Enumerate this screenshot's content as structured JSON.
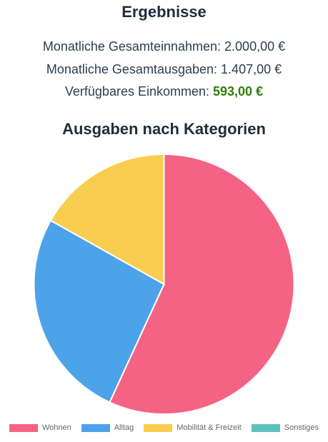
{
  "results": {
    "title": "Ergebnisse",
    "income_label": "Monatliche Gesamteinnahmen:",
    "income_value": "2.000,00 €",
    "expenses_label": "Monatliche Gesamtausgaben:",
    "expenses_value": "1.407,00 €",
    "available_label": "Verfügbares Einkommen:",
    "available_value": "593,00 €",
    "available_color": "#2e7d0b"
  },
  "chart_data": {
    "type": "pie",
    "title": "Ausgaben nach Kategorien",
    "legend_position": "bottom",
    "categories": [
      "Wohnen",
      "Alltag",
      "Mobilität & Freizeit",
      "Sonstiges"
    ],
    "values": [
      800,
      370,
      237,
      0
    ],
    "colors": [
      "#f56384",
      "#4ca3e9",
      "#f9cd4f",
      "#5cc2bd"
    ]
  }
}
